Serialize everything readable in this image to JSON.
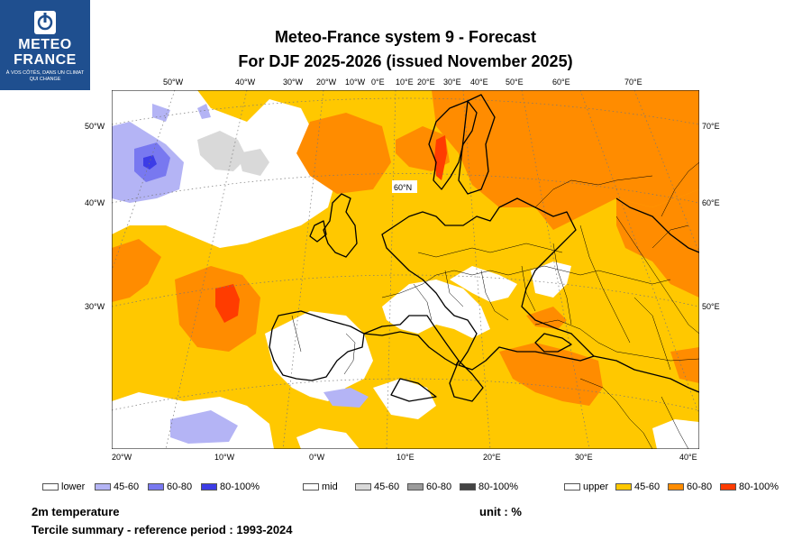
{
  "logo": {
    "line1": "METEO",
    "line2": "FRANCE",
    "tagline": "À VOS CÔTÉS, DANS UN CLIMAT QUI CHANGE",
    "color": "#1f4f8f"
  },
  "title": {
    "line1": "Meteo-France system 9  -  Forecast",
    "line2": "For DJF 2025-2026      (issued November 2025)"
  },
  "map": {
    "top_ticks": [
      "50°W",
      "40°W",
      "30°W",
      "20°W",
      "10°W",
      "0°E",
      "10°E",
      "20°E",
      "30°E",
      "40°E",
      "50°E",
      "60°E",
      "70°E"
    ],
    "left_ticks": [
      "50°W",
      "40°W",
      "30°W"
    ],
    "right_ticks": [
      "70°E",
      "60°E",
      "50°E"
    ],
    "bottom_ticks": [
      "20°W",
      "10°W",
      "0°W",
      "10°E",
      "20°E",
      "30°E",
      "40°E"
    ],
    "lat_label": "60°N"
  },
  "legend": {
    "lower": {
      "label": "lower",
      "items": [
        {
          "label": "45-60",
          "color": "#b4b4f5"
        },
        {
          "label": "60-80",
          "color": "#7878f0"
        },
        {
          "label": "80-100%",
          "color": "#3c3ce6"
        }
      ]
    },
    "mid": {
      "label": "mid",
      "items": [
        {
          "label": "45-60",
          "color": "#d9d9d9"
        },
        {
          "label": "60-80",
          "color": "#9b9b9b"
        },
        {
          "label": "80-100%",
          "color": "#444444"
        }
      ]
    },
    "upper": {
      "label": "upper",
      "items": [
        {
          "label": "45-60",
          "color": "#ffc800"
        },
        {
          "label": "60-80",
          "color": "#ff8c00"
        },
        {
          "label": "80-100%",
          "color": "#ff3c00"
        }
      ]
    }
  },
  "footer": {
    "variable": "2m temperature",
    "unit": "unit : %",
    "summary": "Tercile summary - reference period : 1993-2024"
  }
}
